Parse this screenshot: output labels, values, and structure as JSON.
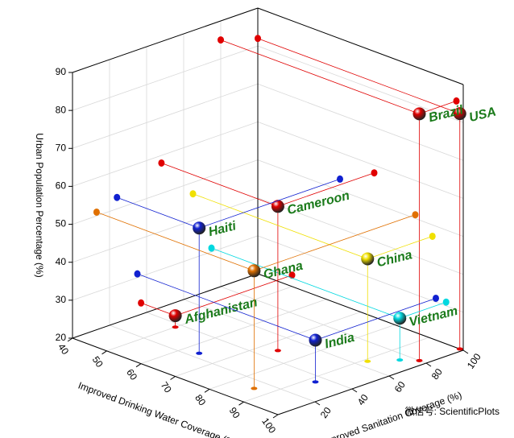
{
  "chart_data": {
    "type": "scatter3d",
    "xlabel": "Improved Drinking Water Coverage (%)",
    "ylabel": "Improved Sanitation Coverage (%)",
    "zlabel": "Urban Population Percentage (%)",
    "categories": [
      "Brazil",
      "USA",
      "Cameroon",
      "Haiti",
      "Ghana",
      "China",
      "Afghanistan",
      "India",
      "Vietnam"
    ],
    "x": [
      98,
      99,
      74,
      64,
      86,
      91,
      50,
      92,
      95
    ],
    "y": [
      80,
      100,
      48,
      24,
      13,
      65,
      37,
      35,
      75
    ],
    "z": [
      85,
      82,
      58,
      53,
      51,
      47,
      23,
      31,
      31
    ],
    "colors": [
      "#e00000",
      "#e00000",
      "#e00000",
      "#1020d0",
      "#e07000",
      "#f0e000",
      "#e00000",
      "#1020d0",
      "#00d8e0"
    ],
    "xlim": [
      40,
      100
    ],
    "xticks": [
      40,
      50,
      60,
      70,
      80,
      90,
      100
    ],
    "ylim": [
      0,
      100
    ],
    "yticks": [
      20,
      40,
      60,
      80,
      100
    ],
    "zlim": [
      20,
      90
    ],
    "zticks": [
      20,
      30,
      40,
      50,
      60,
      70,
      80,
      90
    ],
    "grid": true,
    "watermark": "微信号: ScientificPlots"
  }
}
